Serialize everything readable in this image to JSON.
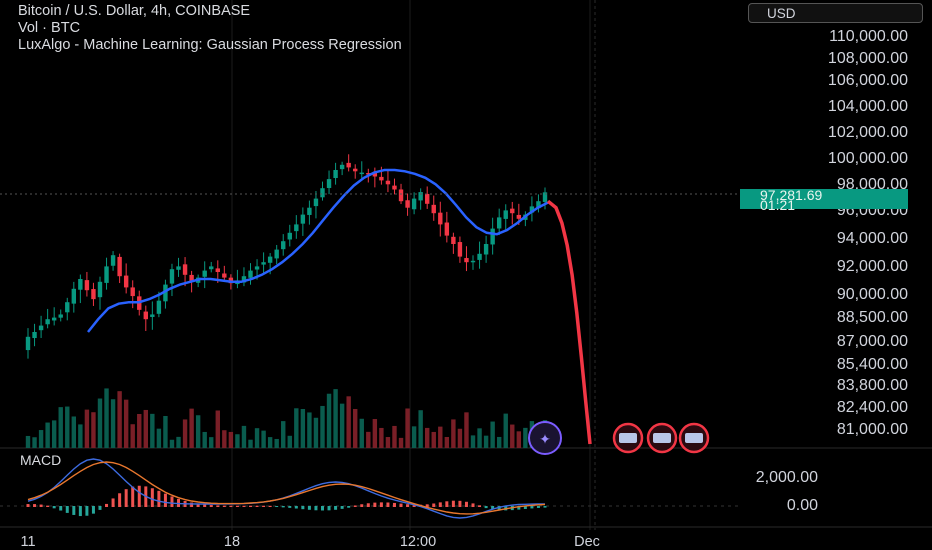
{
  "header": {
    "symbol_line": "Bitcoin / U.S. Dollar, 4h, COINBASE",
    "volume_line": "Vol · BTC",
    "indicator_line": "LuxAlgo - Machine Learning: Gaussian Process Regression"
  },
  "currency": "USD",
  "last_price": "97,281.69",
  "countdown": "01:21",
  "macd_label": "MACD",
  "colors": {
    "up": "#089981",
    "down": "#f23645",
    "gpr_fit": "#2962ff",
    "gpr_forecast": "#f23645",
    "macd": "#3d6be0",
    "signal": "#e8772e"
  },
  "chart_data": {
    "type": "candlestick",
    "price_axis_ticks": [
      "110,000.00",
      "108,000.00",
      "106,000.00",
      "104,000.00",
      "102,000.00",
      "100,000.00",
      "98,000.00",
      "96,000.00",
      "94,000.00",
      "92,000.00",
      "90,000.00",
      "88,500.00",
      "87,000.00",
      "85,400.00",
      "83,800.00",
      "82,400.00",
      "81,000.00"
    ],
    "macd_axis_ticks": [
      "2,000.00",
      "0.00"
    ],
    "time_axis_ticks": [
      "11",
      "18",
      "12:00",
      "Dec"
    ],
    "ylim": [
      80000,
      111000
    ],
    "close_series": [
      87200,
      87500,
      87900,
      88300,
      88400,
      88600,
      89400,
      90300,
      91000,
      90200,
      89600,
      90800,
      91900,
      92700,
      91200,
      90400,
      89800,
      88900,
      88300,
      88600,
      89500,
      90600,
      91700,
      91900,
      91300,
      90800,
      91100,
      91600,
      91900,
      91500,
      91100,
      90700,
      90900,
      91200,
      91600,
      91900,
      92200,
      92600,
      93100,
      93700,
      94300,
      94900,
      95600,
      96100,
      96800,
      97600,
      98300,
      99000,
      99400,
      99200,
      98900,
      98800,
      98700,
      98500,
      98200,
      97900,
      97500,
      96600,
      96100,
      96800,
      97300,
      96400,
      95700,
      94900,
      94100,
      93500,
      92600,
      92200,
      92300,
      92800,
      93500,
      94600,
      95400,
      95900,
      95700,
      95300,
      95600,
      96200,
      96600,
      97281
    ],
    "gpr_fit": [
      87500,
      88300,
      89000,
      89300,
      89400,
      89400,
      89600,
      89900,
      90300,
      90600,
      90800,
      91000,
      91000,
      90900,
      90800,
      90800,
      91000,
      91300,
      91700,
      92200,
      92800,
      93500,
      94300,
      95200,
      96100,
      97000,
      97800,
      98400,
      98800,
      99000,
      99000,
      98900,
      98700,
      98400,
      97900,
      97200,
      96300,
      95400,
      94700,
      94300,
      94200,
      94500,
      95000,
      95600,
      96100,
      96500
    ],
    "gpr_forecast": [
      96600,
      96100,
      95000,
      93400,
      91300,
      88700,
      85800,
      82700,
      80000
    ],
    "volume_peaks_btc": "relative bars, largest near day 14"
  }
}
